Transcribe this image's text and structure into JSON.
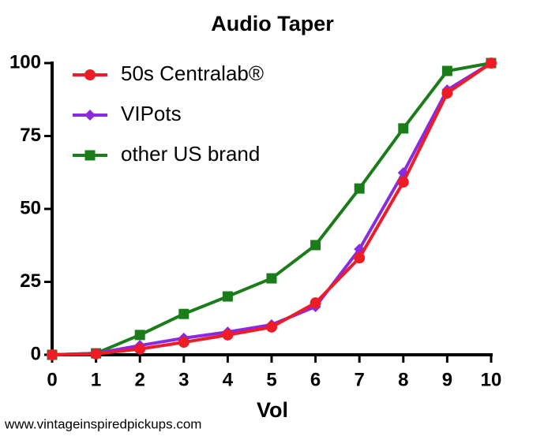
{
  "chart_data": {
    "type": "line",
    "title": "Audio Taper",
    "x_label": "Vol",
    "source": "www.vintageinspiredpickups.com",
    "x": [
      0,
      1,
      2,
      3,
      4,
      5,
      6,
      7,
      8,
      9,
      10
    ],
    "xlim": [
      0,
      10
    ],
    "xticks": [
      0,
      1,
      2,
      3,
      4,
      5,
      6,
      7,
      8,
      9,
      10
    ],
    "ylim": [
      0,
      100
    ],
    "yticks": [
      0,
      25,
      50,
      75,
      100
    ],
    "legend": "upper-left",
    "series": [
      {
        "name": "50s Centralab®",
        "color": "#ee1c25",
        "marker": "circle",
        "values": [
          0,
          0.3,
          2,
          4.3,
          6.8,
          9.5,
          17.8,
          33.2,
          59.2,
          89.7,
          100
        ]
      },
      {
        "name": "VIPots",
        "color": "#8a2be2",
        "marker": "diamond",
        "values": [
          0,
          0.5,
          3.2,
          5.7,
          7.8,
          10.3,
          16.5,
          36.2,
          62.4,
          90.8,
          100
        ]
      },
      {
        "name": "other US brand",
        "color": "#1a7d1a",
        "marker": "square",
        "values": [
          0,
          0.5,
          6.8,
          14,
          20,
          26.2,
          37.6,
          57,
          77.6,
          97.3,
          100
        ]
      }
    ]
  }
}
